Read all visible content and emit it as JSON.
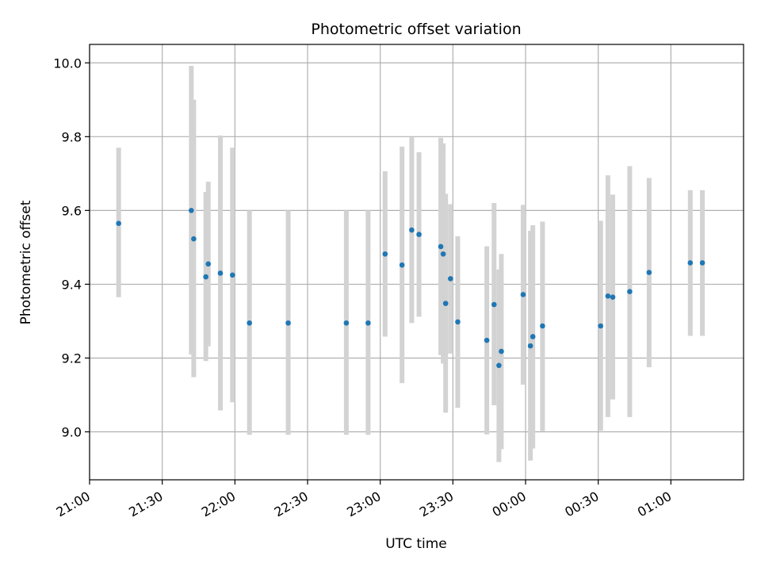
{
  "chart_data": {
    "type": "scatter",
    "title": "Photometric offset variation",
    "xlabel": "UTC time",
    "ylabel": "Photometric offset",
    "x_axis_kind": "time",
    "xlim": [
      "21:00",
      "01:30"
    ],
    "ylim": [
      8.87,
      10.05
    ],
    "grid": true,
    "x_ticks": [
      "21:00",
      "21:30",
      "22:00",
      "22:30",
      "23:00",
      "23:30",
      "00:00",
      "00:30",
      "01:00"
    ],
    "y_ticks": [
      "9.0",
      "9.2",
      "9.4",
      "9.6",
      "9.8",
      "10.0"
    ],
    "colors": {
      "marker": "#1f77b4",
      "errorbar": "#d3d3d3",
      "grid": "#b0b0b0"
    },
    "points": [
      {
        "t": "21:12",
        "y": 9.565,
        "lo": 9.365,
        "hi": 9.77
      },
      {
        "t": "21:42",
        "y": 9.6,
        "lo": 9.21,
        "hi": 9.992
      },
      {
        "t": "21:43",
        "y": 9.523,
        "lo": 9.148,
        "hi": 9.9
      },
      {
        "t": "21:48",
        "y": 9.42,
        "lo": 9.192,
        "hi": 9.65
      },
      {
        "t": "21:49",
        "y": 9.455,
        "lo": 9.232,
        "hi": 9.678
      },
      {
        "t": "21:54",
        "y": 9.43,
        "lo": 9.058,
        "hi": 9.803
      },
      {
        "t": "21:59",
        "y": 9.425,
        "lo": 9.08,
        "hi": 9.77
      },
      {
        "t": "22:06",
        "y": 9.295,
        "lo": 8.992,
        "hi": 9.6
      },
      {
        "t": "22:22",
        "y": 9.295,
        "lo": 8.992,
        "hi": 9.6
      },
      {
        "t": "22:46",
        "y": 9.295,
        "lo": 8.992,
        "hi": 9.6
      },
      {
        "t": "22:55",
        "y": 9.295,
        "lo": 8.992,
        "hi": 9.6
      },
      {
        "t": "23:02",
        "y": 9.482,
        "lo": 9.258,
        "hi": 9.706
      },
      {
        "t": "23:09",
        "y": 9.452,
        "lo": 9.132,
        "hi": 9.773
      },
      {
        "t": "23:13",
        "y": 9.547,
        "lo": 9.295,
        "hi": 9.798
      },
      {
        "t": "23:16",
        "y": 9.535,
        "lo": 9.312,
        "hi": 9.758
      },
      {
        "t": "23:25",
        "y": 9.502,
        "lo": 9.208,
        "hi": 9.797
      },
      {
        "t": "23:26",
        "y": 9.482,
        "lo": 9.185,
        "hi": 9.782
      },
      {
        "t": "23:27",
        "y": 9.348,
        "lo": 9.052,
        "hi": 9.645
      },
      {
        "t": "23:29",
        "y": 9.415,
        "lo": 9.212,
        "hi": 9.617
      },
      {
        "t": "23:32",
        "y": 9.298,
        "lo": 9.065,
        "hi": 9.53
      },
      {
        "t": "23:44",
        "y": 9.248,
        "lo": 8.993,
        "hi": 9.503
      },
      {
        "t": "23:47",
        "y": 9.345,
        "lo": 9.072,
        "hi": 9.62
      },
      {
        "t": "23:49",
        "y": 9.18,
        "lo": 8.918,
        "hi": 9.44
      },
      {
        "t": "23:50",
        "y": 9.218,
        "lo": 8.953,
        "hi": 9.482
      },
      {
        "t": "23:59",
        "y": 9.372,
        "lo": 9.128,
        "hi": 9.615
      },
      {
        "t": "00:02",
        "y": 9.233,
        "lo": 8.922,
        "hi": 9.545
      },
      {
        "t": "00:03",
        "y": 9.258,
        "lo": 8.955,
        "hi": 9.56
      },
      {
        "t": "00:07",
        "y": 9.287,
        "lo": 9.002,
        "hi": 9.57
      },
      {
        "t": "00:31",
        "y": 9.287,
        "lo": 9.003,
        "hi": 9.572
      },
      {
        "t": "00:34",
        "y": 9.368,
        "lo": 9.04,
        "hi": 9.695
      },
      {
        "t": "00:36",
        "y": 9.365,
        "lo": 9.088,
        "hi": 9.643
      },
      {
        "t": "00:43",
        "y": 9.38,
        "lo": 9.04,
        "hi": 9.72
      },
      {
        "t": "00:51",
        "y": 9.432,
        "lo": 9.175,
        "hi": 9.688
      },
      {
        "t": "01:08",
        "y": 9.458,
        "lo": 9.26,
        "hi": 9.655
      },
      {
        "t": "01:13",
        "y": 9.458,
        "lo": 9.26,
        "hi": 9.655
      }
    ]
  }
}
